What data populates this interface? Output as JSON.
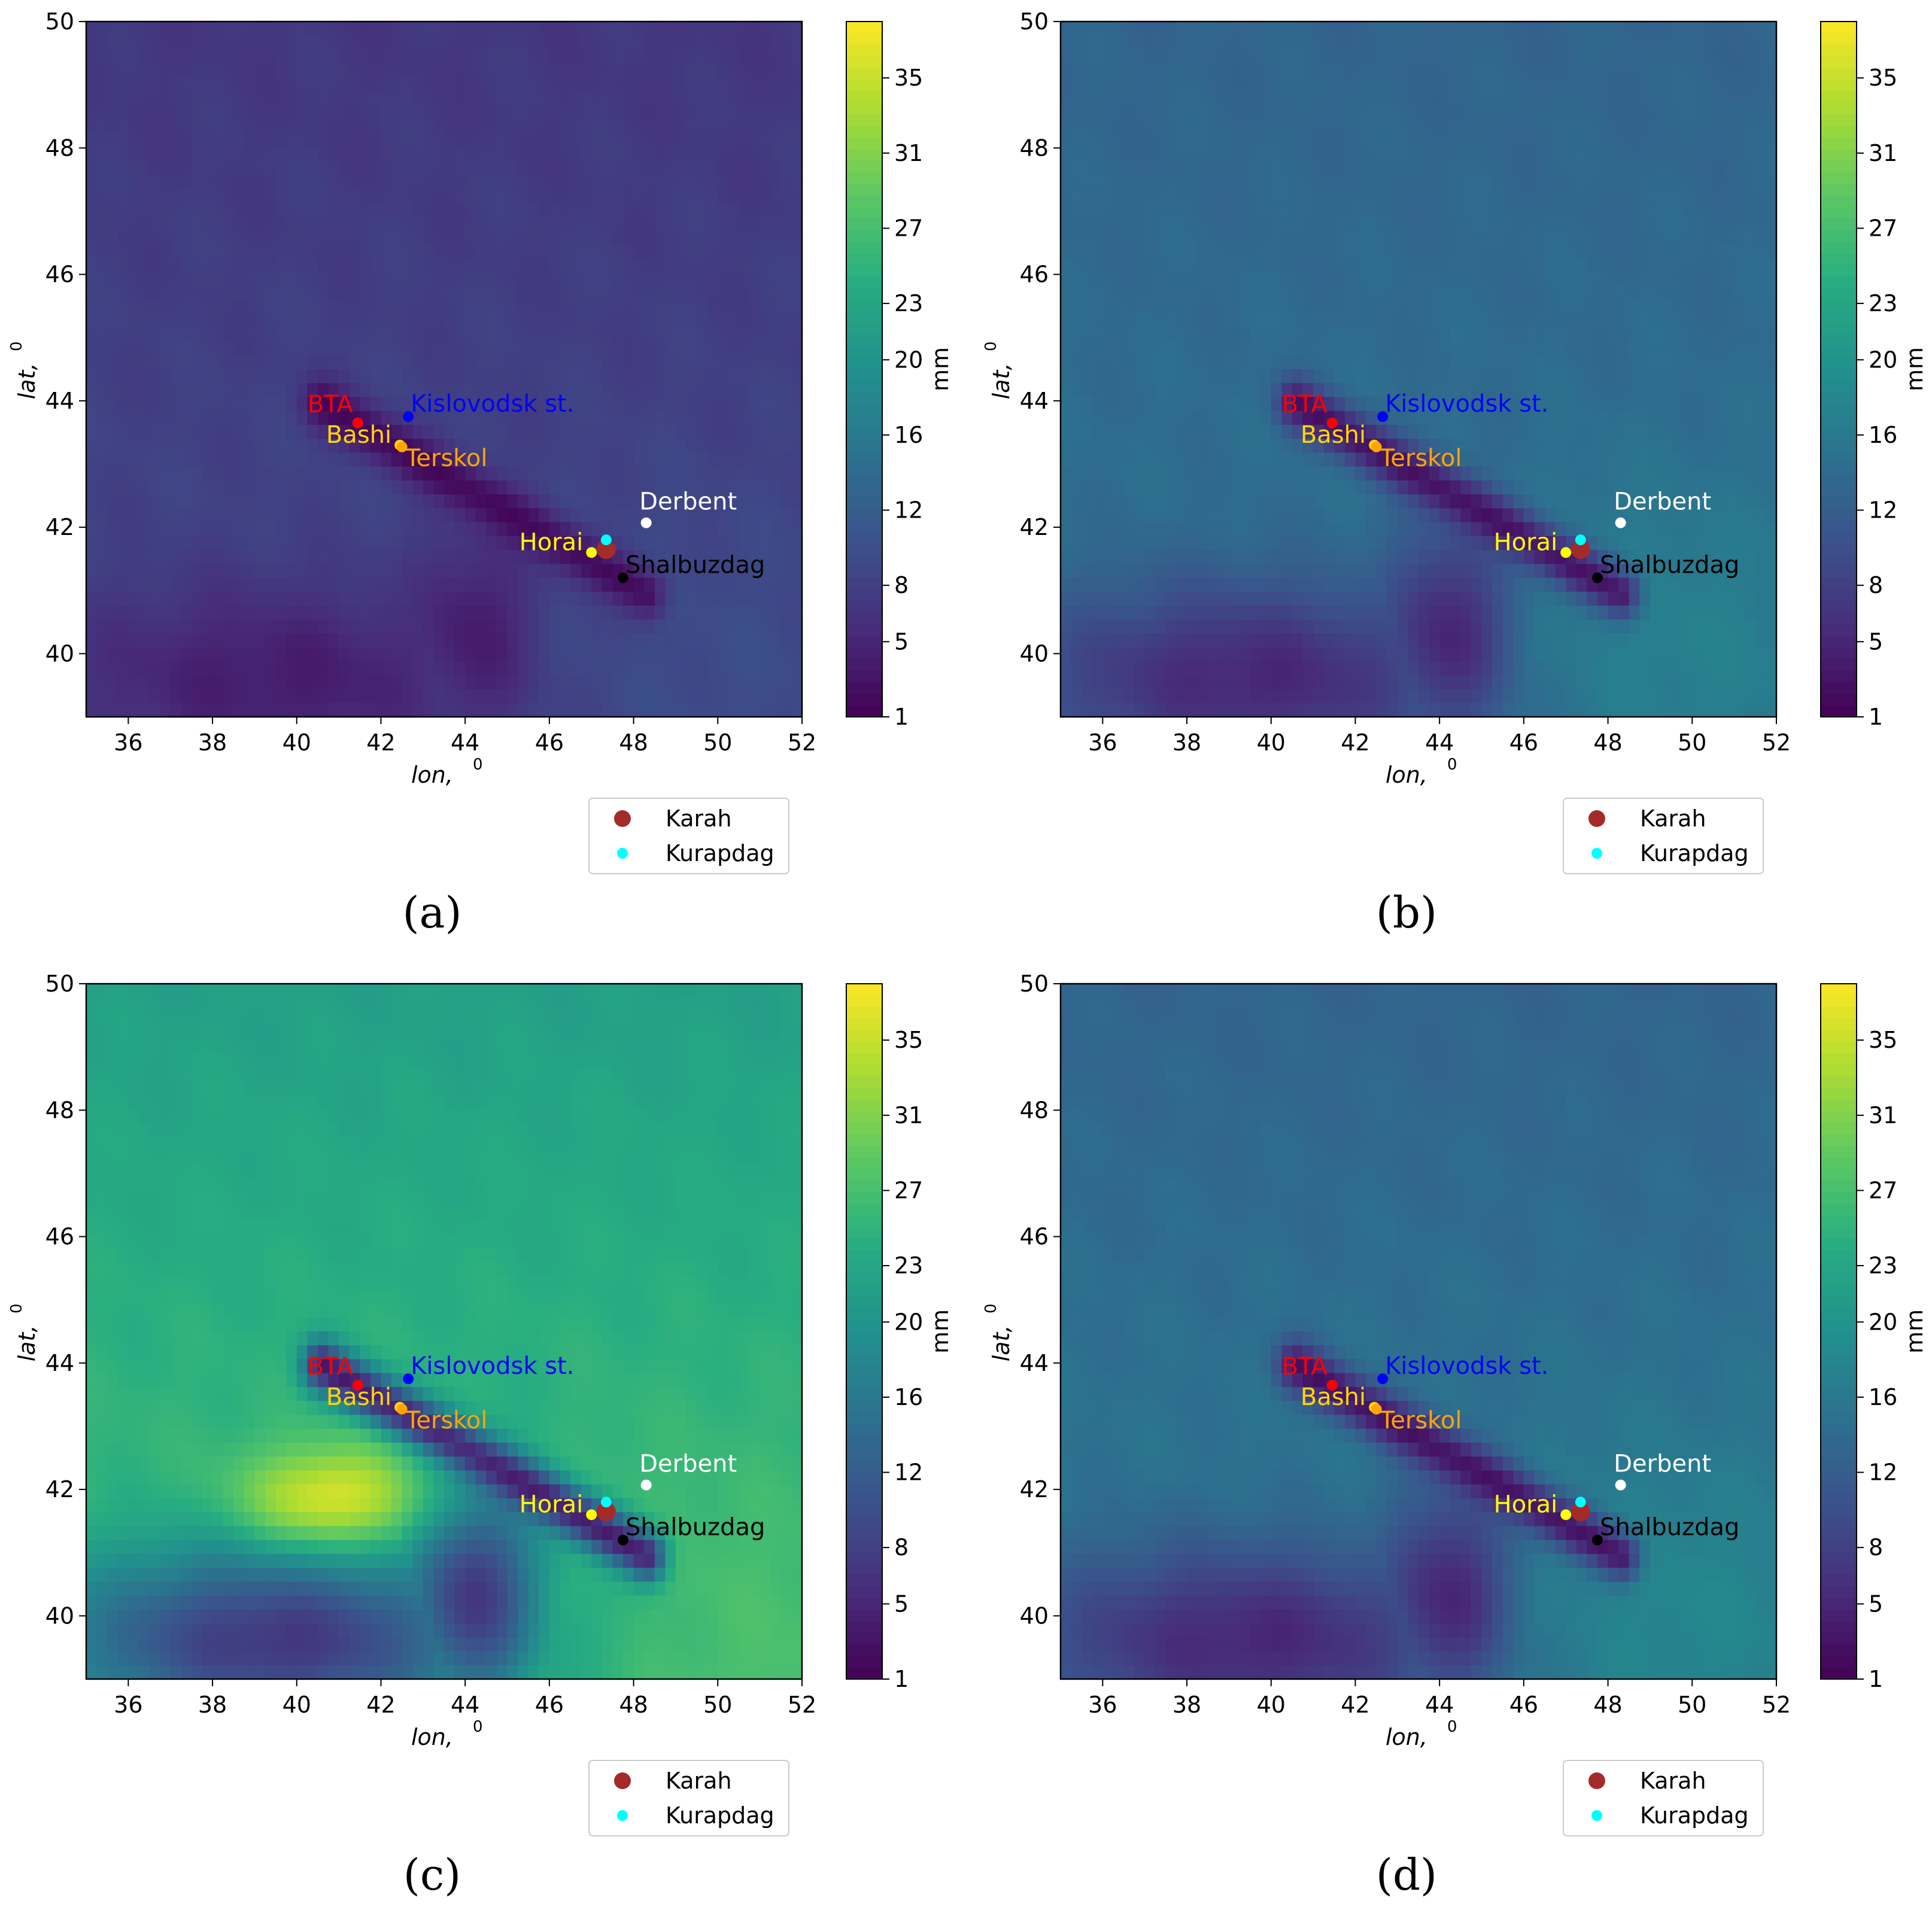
{
  "figure": {
    "colorbar_label": "mm",
    "colorbar_ticks": [
      "1",
      "5",
      "8",
      "12",
      "16",
      "20",
      "23",
      "27",
      "31",
      "35"
    ],
    "colorbar_tick_values": [
      1,
      5,
      8,
      12,
      16,
      20,
      23,
      27,
      31,
      35
    ],
    "colorbar_range": [
      1,
      38
    ],
    "colormap": "viridis",
    "colormap_stops": [
      "#440154",
      "#472c7a",
      "#3b518b",
      "#2c718e",
      "#21908d",
      "#27ad81",
      "#5cc863",
      "#aadc32",
      "#fde725"
    ]
  },
  "chart_data": [
    {
      "type": "heatmap",
      "panel_label": "(a)",
      "xlabel": "lon,",
      "xlabel_sup": "0",
      "ylabel": "lat,",
      "ylabel_sup": "0",
      "xlim": [
        35,
        52
      ],
      "ylim": [
        39,
        50
      ],
      "xticks": [
        "36",
        "38",
        "40",
        "42",
        "44",
        "46",
        "48",
        "50",
        "52"
      ],
      "xtick_values": [
        36,
        38,
        40,
        42,
        44,
        46,
        48,
        50,
        52
      ],
      "yticks": [
        "40",
        "42",
        "44",
        "46",
        "48",
        "50"
      ],
      "ytick_values": [
        40,
        42,
        44,
        46,
        48,
        50
      ],
      "field": {
        "north": 7,
        "mid": 9,
        "south_east": 10,
        "south_basin": 4,
        "ridge": 2
      },
      "sites": [
        {
          "name": "BTA",
          "lon": 41.45,
          "lat": 43.65,
          "color": "#ff0000",
          "label_pos": "above-left",
          "labeled": true
        },
        {
          "name": "Kislovodsk st.",
          "lon": 42.65,
          "lat": 43.75,
          "color": "#0000ff",
          "label_pos": "right-up",
          "labeled": true
        },
        {
          "name": "Bashi",
          "lon": 42.45,
          "lat": 43.3,
          "color": "#ffd700",
          "label_pos": "left",
          "labeled": true
        },
        {
          "name": "Terskol",
          "lon": 42.5,
          "lat": 43.27,
          "color": "#ffa500",
          "label_pos": "right-down",
          "labeled": true
        },
        {
          "name": "Derbent",
          "lon": 48.3,
          "lat": 42.07,
          "color": "#ffffff",
          "label_pos": "above",
          "labeled": true
        },
        {
          "name": "Horai",
          "lon": 47.0,
          "lat": 41.6,
          "color": "#ffff00",
          "label_pos": "left",
          "labeled": true
        },
        {
          "name": "Shalbuzdag",
          "lon": 47.75,
          "lat": 41.2,
          "color": "#000000",
          "label_pos": "right-up",
          "labeled": true
        },
        {
          "name": "Karah",
          "lon": 47.35,
          "lat": 41.65,
          "color": "#a52a2a",
          "label_pos": "none",
          "labeled": false
        },
        {
          "name": "Kurapdag",
          "lon": 47.35,
          "lat": 41.8,
          "color": "#00ffff",
          "label_pos": "none",
          "labeled": false
        }
      ],
      "legend": [
        {
          "label": "Karah",
          "color": "#a52a2a",
          "marker": "large"
        },
        {
          "label": "Kurapdag",
          "color": "#00ffff",
          "marker": "small"
        }
      ]
    },
    {
      "type": "heatmap",
      "panel_label": "(b)",
      "xlabel": "lon,",
      "xlabel_sup": "0",
      "ylabel": "lat,",
      "ylabel_sup": "0",
      "xlim": [
        35,
        52
      ],
      "ylim": [
        39,
        50
      ],
      "xticks": [
        "36",
        "38",
        "40",
        "42",
        "44",
        "46",
        "48",
        "50",
        "52"
      ],
      "xtick_values": [
        36,
        38,
        40,
        42,
        44,
        46,
        48,
        50,
        52
      ],
      "yticks": [
        "40",
        "42",
        "44",
        "46",
        "48",
        "50"
      ],
      "ytick_values": [
        40,
        42,
        44,
        46,
        48,
        50
      ],
      "field": {
        "north": 13,
        "mid": 15,
        "south_east": 18,
        "south_basin": 5,
        "ridge": 3
      },
      "sites": [
        {
          "name": "BTA",
          "lon": 41.45,
          "lat": 43.65,
          "color": "#ff0000",
          "label_pos": "above-left",
          "labeled": true
        },
        {
          "name": "Kislovodsk st.",
          "lon": 42.65,
          "lat": 43.75,
          "color": "#0000ff",
          "label_pos": "right-up",
          "labeled": true
        },
        {
          "name": "Bashi",
          "lon": 42.45,
          "lat": 43.3,
          "color": "#ffd700",
          "label_pos": "left",
          "labeled": true
        },
        {
          "name": "Terskol",
          "lon": 42.5,
          "lat": 43.27,
          "color": "#ffa500",
          "label_pos": "right-down",
          "labeled": true
        },
        {
          "name": "Derbent",
          "lon": 48.3,
          "lat": 42.07,
          "color": "#ffffff",
          "label_pos": "above",
          "labeled": true
        },
        {
          "name": "Horai",
          "lon": 47.0,
          "lat": 41.6,
          "color": "#ffff00",
          "label_pos": "left",
          "labeled": true
        },
        {
          "name": "Shalbuzdag",
          "lon": 47.75,
          "lat": 41.2,
          "color": "#000000",
          "label_pos": "right-up",
          "labeled": true
        },
        {
          "name": "Karah",
          "lon": 47.35,
          "lat": 41.65,
          "color": "#a52a2a",
          "label_pos": "none",
          "labeled": false
        },
        {
          "name": "Kurapdag",
          "lon": 47.35,
          "lat": 41.8,
          "color": "#00ffff",
          "label_pos": "none",
          "labeled": false
        }
      ],
      "legend": [
        {
          "label": "Karah",
          "color": "#a52a2a",
          "marker": "large"
        },
        {
          "label": "Kurapdag",
          "color": "#00ffff",
          "marker": "small"
        }
      ]
    },
    {
      "type": "heatmap",
      "panel_label": "(c)",
      "xlabel": "lon,",
      "xlabel_sup": "0",
      "ylabel": "lat,",
      "ylabel_sup": "0",
      "xlim": [
        35,
        52
      ],
      "ylim": [
        39,
        50
      ],
      "xticks": [
        "36",
        "38",
        "40",
        "42",
        "44",
        "46",
        "48",
        "50",
        "52"
      ],
      "xtick_values": [
        36,
        38,
        40,
        42,
        44,
        46,
        48,
        50,
        52
      ],
      "yticks": [
        "40",
        "42",
        "44",
        "46",
        "48",
        "50"
      ],
      "ytick_values": [
        40,
        42,
        44,
        46,
        48,
        50
      ],
      "field": {
        "north": 22,
        "mid": 27,
        "south_east": 28,
        "south_basin": 7,
        "ridge": 4,
        "hotspot": 36
      },
      "sites": [
        {
          "name": "BTA",
          "lon": 41.45,
          "lat": 43.65,
          "color": "#ff0000",
          "label_pos": "above-left",
          "labeled": true
        },
        {
          "name": "Kislovodsk st.",
          "lon": 42.65,
          "lat": 43.75,
          "color": "#0000ff",
          "label_pos": "right-up",
          "labeled": true
        },
        {
          "name": "Bashi",
          "lon": 42.45,
          "lat": 43.3,
          "color": "#ffd700",
          "label_pos": "left",
          "labeled": true
        },
        {
          "name": "Terskol",
          "lon": 42.5,
          "lat": 43.27,
          "color": "#ffa500",
          "label_pos": "right-down",
          "labeled": true
        },
        {
          "name": "Derbent",
          "lon": 48.3,
          "lat": 42.07,
          "color": "#ffffff",
          "label_pos": "above",
          "labeled": true
        },
        {
          "name": "Horai",
          "lon": 47.0,
          "lat": 41.6,
          "color": "#ffff00",
          "label_pos": "left",
          "labeled": true
        },
        {
          "name": "Shalbuzdag",
          "lon": 47.75,
          "lat": 41.2,
          "color": "#000000",
          "label_pos": "right-up",
          "labeled": true
        },
        {
          "name": "Karah",
          "lon": 47.35,
          "lat": 41.65,
          "color": "#a52a2a",
          "label_pos": "none",
          "labeled": false
        },
        {
          "name": "Kurapdag",
          "lon": 47.35,
          "lat": 41.8,
          "color": "#00ffff",
          "label_pos": "none",
          "labeled": false
        }
      ],
      "legend": [
        {
          "label": "Karah",
          "color": "#a52a2a",
          "marker": "large"
        },
        {
          "label": "Kurapdag",
          "color": "#00ffff",
          "marker": "small"
        }
      ]
    },
    {
      "type": "heatmap",
      "panel_label": "(d)",
      "xlabel": "lon,",
      "xlabel_sup": "0",
      "ylabel": "lat,",
      "ylabel_sup": "0",
      "xlim": [
        35,
        52
      ],
      "ylim": [
        39,
        50
      ],
      "xticks": [
        "36",
        "38",
        "40",
        "42",
        "44",
        "46",
        "48",
        "50",
        "52"
      ],
      "xtick_values": [
        36,
        38,
        40,
        42,
        44,
        46,
        48,
        50,
        52
      ],
      "yticks": [
        "40",
        "42",
        "44",
        "46",
        "48",
        "50"
      ],
      "ytick_values": [
        40,
        42,
        44,
        46,
        48,
        50
      ],
      "field": {
        "north": 13,
        "mid": 16,
        "south_east": 19,
        "south_basin": 5,
        "ridge": 3
      },
      "sites": [
        {
          "name": "BTA",
          "lon": 41.45,
          "lat": 43.65,
          "color": "#ff0000",
          "label_pos": "above-left",
          "labeled": true
        },
        {
          "name": "Kislovodsk st.",
          "lon": 42.65,
          "lat": 43.75,
          "color": "#0000ff",
          "label_pos": "right-up",
          "labeled": true
        },
        {
          "name": "Bashi",
          "lon": 42.45,
          "lat": 43.3,
          "color": "#ffd700",
          "label_pos": "left",
          "labeled": true
        },
        {
          "name": "Terskol",
          "lon": 42.5,
          "lat": 43.27,
          "color": "#ffa500",
          "label_pos": "right-down",
          "labeled": true
        },
        {
          "name": "Derbent",
          "lon": 48.3,
          "lat": 42.07,
          "color": "#ffffff",
          "label_pos": "above",
          "labeled": true
        },
        {
          "name": "Horai",
          "lon": 47.0,
          "lat": 41.6,
          "color": "#ffff00",
          "label_pos": "left",
          "labeled": true
        },
        {
          "name": "Shalbuzdag",
          "lon": 47.75,
          "lat": 41.2,
          "color": "#000000",
          "label_pos": "right-up",
          "labeled": true
        },
        {
          "name": "Karah",
          "lon": 47.35,
          "lat": 41.65,
          "color": "#a52a2a",
          "label_pos": "none",
          "labeled": false
        },
        {
          "name": "Kurapdag",
          "lon": 47.35,
          "lat": 41.8,
          "color": "#00ffff",
          "label_pos": "none",
          "labeled": false
        }
      ],
      "legend": [
        {
          "label": "Karah",
          "color": "#a52a2a",
          "marker": "large"
        },
        {
          "label": "Kurapdag",
          "color": "#00ffff",
          "marker": "small"
        }
      ]
    }
  ]
}
